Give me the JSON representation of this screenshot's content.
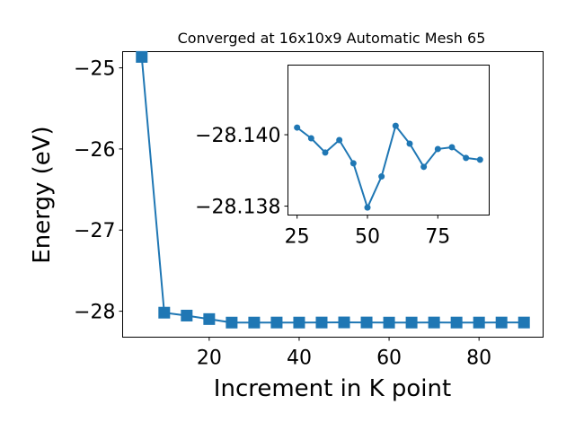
{
  "chart_data": [
    {
      "type": "line",
      "title": "Converged at 16x10x9 Automatic Mesh 65",
      "xlabel": "Increment in K point",
      "ylabel": "Energy (eV)",
      "xlim": [
        0.75,
        94.25
      ],
      "ylim": [
        -28.32,
        -24.8
      ],
      "xticks": [
        20,
        40,
        60,
        80
      ],
      "yticks": [
        -28,
        -27,
        -26,
        -25
      ],
      "grid": false,
      "marker": "square",
      "color": "#1f77b4",
      "x": [
        5,
        10,
        15,
        20,
        25,
        30,
        35,
        40,
        45,
        50,
        55,
        60,
        65,
        70,
        75,
        80,
        85,
        90
      ],
      "y": [
        -24.865,
        -28.018,
        -28.054,
        -28.097,
        -28.1402,
        -28.1399,
        -28.1395,
        -28.13985,
        -28.1392,
        -28.13796,
        -28.13883,
        -28.14025,
        -28.13975,
        -28.1391,
        -28.1396,
        -28.13965,
        -28.13935,
        -28.1393
      ]
    },
    {
      "type": "line",
      "title": "",
      "inset": true,
      "xlabel": "",
      "ylabel": "",
      "xlim": [
        21.75,
        93.25
      ],
      "ylim": [
        -28.13775,
        -28.14195
      ],
      "xticks": [
        25,
        50,
        75
      ],
      "yticks": [
        -28.14,
        -28.138
      ],
      "ytick_labels": [
        "−28.140",
        "−28.138"
      ],
      "grid": false,
      "marker": "circle",
      "color": "#1f77b4",
      "x": [
        25,
        30,
        35,
        40,
        45,
        50,
        55,
        60,
        65,
        70,
        75,
        80,
        85,
        90
      ],
      "y": [
        -28.1402,
        -28.1399,
        -28.1395,
        -28.13985,
        -28.1392,
        -28.13796,
        -28.13883,
        -28.14025,
        -28.13975,
        -28.1391,
        -28.1396,
        -28.13965,
        -28.13935,
        -28.1393
      ]
    }
  ]
}
